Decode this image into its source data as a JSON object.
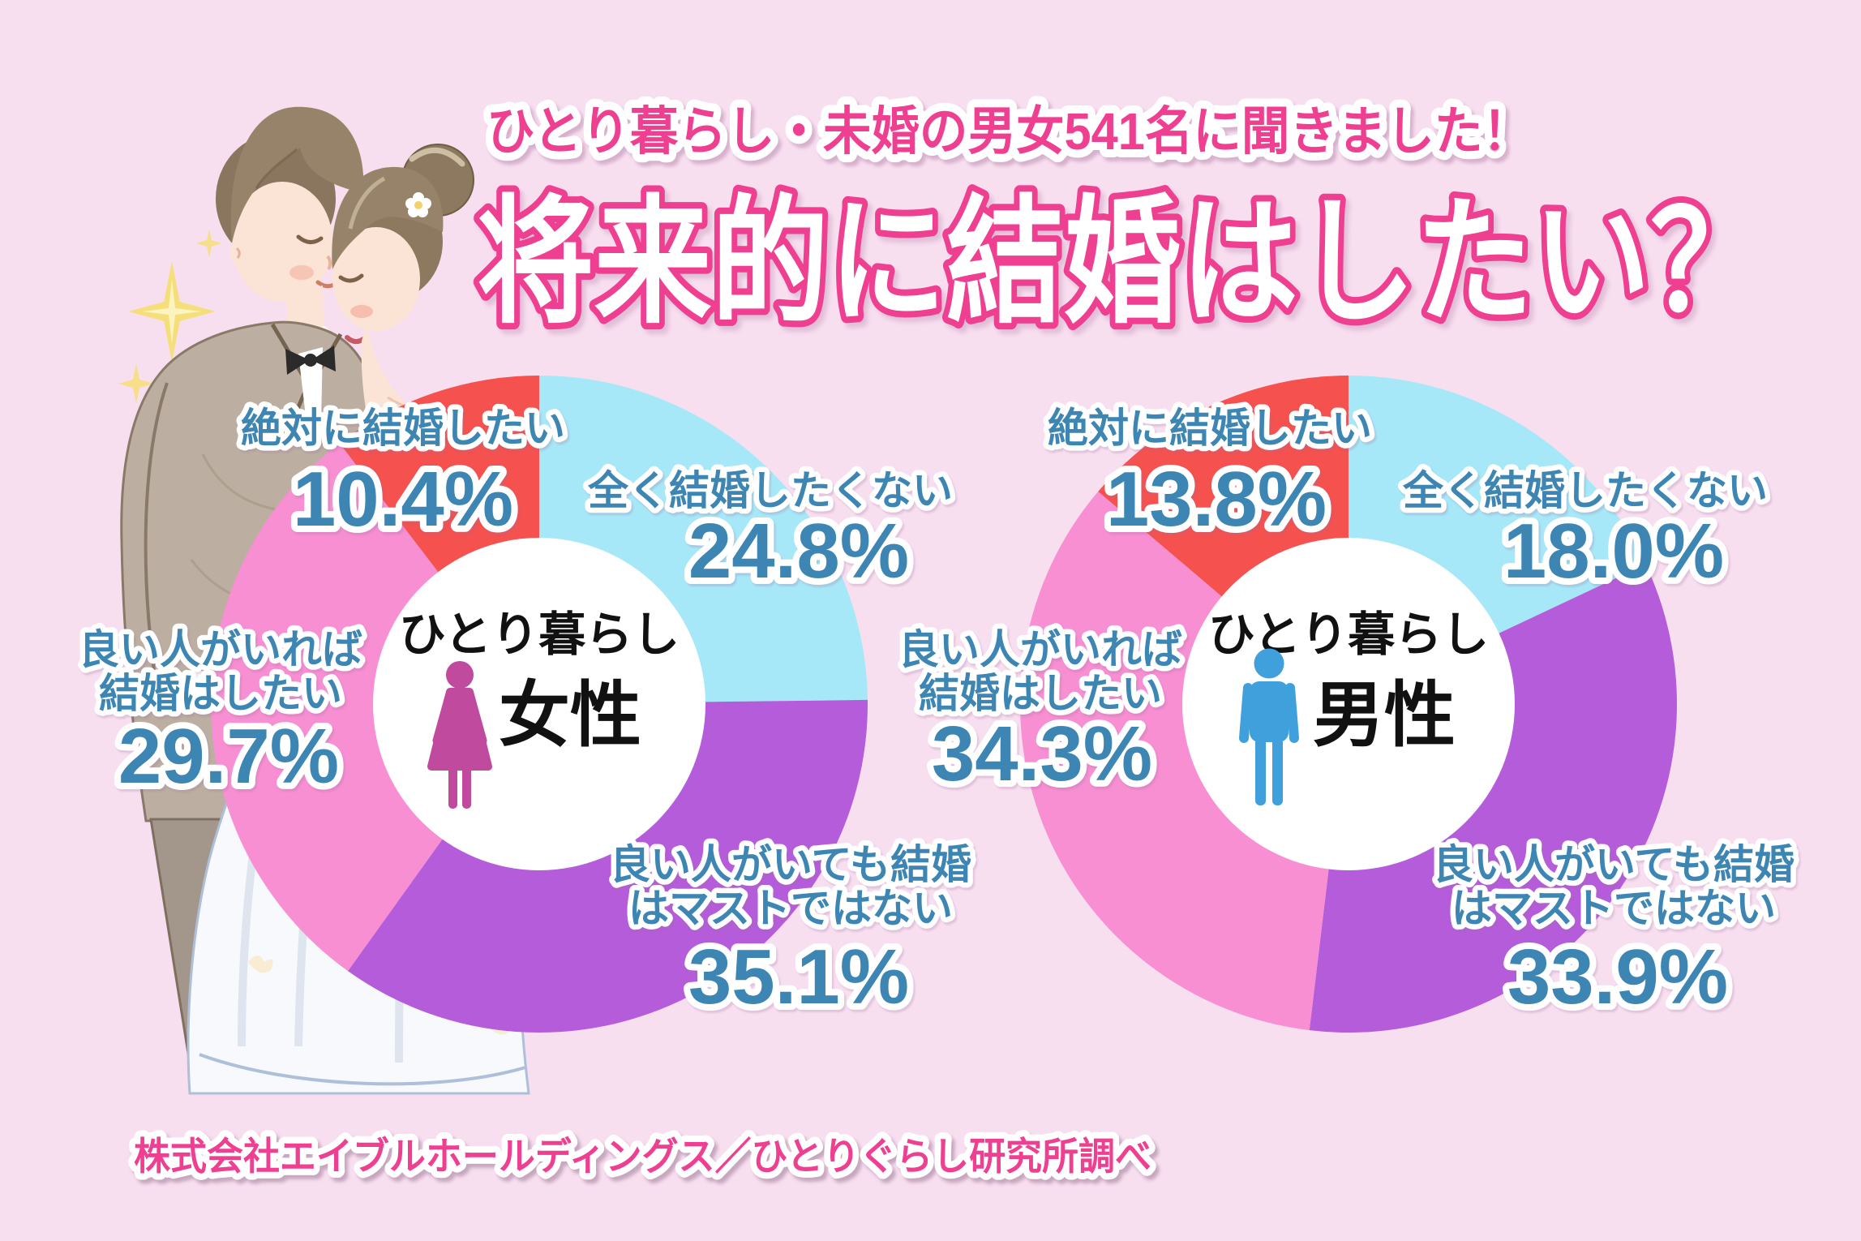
{
  "page": {
    "background_color": "#F8DFF0"
  },
  "header": {
    "subtitle": "ひとり暮らし・未婚の男女541名に聞きました！",
    "title": "将来的に結婚はしたい？",
    "subtitle_color": "#EE3F90",
    "title_fill": "#FFFFFF",
    "title_outline": "#EE3F90"
  },
  "footer": {
    "source": "株式会社エイブルホールディングス／ひとりぐらし研究所調べ"
  },
  "illustration": {
    "alt": "bride-and-groom-watercolor"
  },
  "text_colors": {
    "percent_label": "#3D85B3",
    "accent_pink": "#EE3F90",
    "center_text": "#111111"
  },
  "chart_data": [
    {
      "type": "pie",
      "group": "女性",
      "center_label": {
        "line1": "ひとり暮らし",
        "line2": "女性"
      },
      "gender_icon": "female-icon",
      "gender_icon_color": "#C04A9D",
      "donut_hole_color": "#FFFFFF",
      "direction": "clockwise",
      "start_angle_deg": 0,
      "categories": [
        "全く結婚したくない",
        "良い人がいても結婚はマストではない",
        "良い人がいれば結婚はしたい",
        "絶対に結婚したい"
      ],
      "values": [
        24.8,
        35.1,
        29.7,
        10.4
      ],
      "colors": [
        "#A6E8F8",
        "#B55CDB",
        "#F78FD2",
        "#F4514F"
      ],
      "labels": [
        {
          "lines": [
            "全く結婚したくない"
          ],
          "pct": "24.8%"
        },
        {
          "lines": [
            "良い人がいても結婚",
            "はマストではない"
          ],
          "pct": "35.1%"
        },
        {
          "lines": [
            "良い人がいれば",
            "結婚はしたい"
          ],
          "pct": "29.7%"
        },
        {
          "lines": [
            "絶対に結婚したい"
          ],
          "pct": "10.4%"
        }
      ]
    },
    {
      "type": "pie",
      "group": "男性",
      "center_label": {
        "line1": "ひとり暮らし",
        "line2": "男性"
      },
      "gender_icon": "male-icon",
      "gender_icon_color": "#3FA0DC",
      "donut_hole_color": "#FFFFFF",
      "direction": "clockwise",
      "start_angle_deg": 0,
      "categories": [
        "全く結婚したくない",
        "良い人がいても結婚はマストではない",
        "良い人がいれば結婚はしたい",
        "絶対に結婚したい"
      ],
      "values": [
        18.0,
        33.9,
        34.3,
        13.8
      ],
      "colors": [
        "#A6E8F8",
        "#B55CDB",
        "#F78FD2",
        "#F4514F"
      ],
      "labels": [
        {
          "lines": [
            "全く結婚したくない"
          ],
          "pct": "18.0%"
        },
        {
          "lines": [
            "良い人がいても結婚",
            "はマストではない"
          ],
          "pct": "33.9%"
        },
        {
          "lines": [
            "良い人がいれば",
            "結婚はしたい"
          ],
          "pct": "34.3%"
        },
        {
          "lines": [
            "絶対に結婚したい"
          ],
          "pct": "13.8%"
        }
      ]
    }
  ]
}
